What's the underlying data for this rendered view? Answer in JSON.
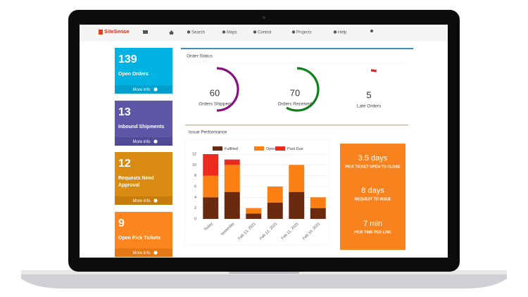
{
  "nav": {
    "brand": "SiteSense",
    "items": [
      "Search",
      "Maps",
      "Control",
      "Projects",
      "Help"
    ]
  },
  "tiles": [
    {
      "value": 139,
      "label": "Open Orders",
      "link": "More info",
      "color": "#00b3e3",
      "link_color": "#00a0cc"
    },
    {
      "value": 13,
      "label": "Inbound Shipments",
      "link": "More info",
      "color": "#5e57a8",
      "link_color": "#514a96"
    },
    {
      "value": 12,
      "label": "Requests Need Approval",
      "link": "More info",
      "color": "#da8b12",
      "link_color": "#c67c0c"
    },
    {
      "value": 9,
      "label": "Open Pick Tickets",
      "link": "More info",
      "color": "#fb8620",
      "link_color": "#e47716"
    }
  ],
  "order_status": {
    "title": "Order Status",
    "gauges": [
      {
        "value": 60,
        "label": "Orders Shipped",
        "color": "#84117f"
      },
      {
        "value": 70,
        "label": "Orders Received",
        "color": "#11801a"
      },
      {
        "value": 5,
        "label": "Late Orders",
        "color": "#e02020"
      }
    ]
  },
  "issue_performance": {
    "title": "Issue Performance"
  },
  "chart_data": {
    "type": "stacked_bar",
    "categories": [
      "Today",
      "Yesterday",
      "Feb 13, 2021",
      "Feb 12, 2021",
      "Feb 11, 2021",
      "Feb 10, 2021"
    ],
    "series": [
      {
        "name": "Fulfilled",
        "color": "#6b2a10",
        "values": [
          4,
          5,
          1,
          3,
          5,
          2
        ]
      },
      {
        "name": "Open",
        "color": "#fb7f12",
        "values": [
          4,
          5,
          1,
          3,
          5,
          2
        ]
      },
      {
        "name": "Past Due",
        "color": "#ec2a1e",
        "values": [
          4,
          1,
          0,
          0,
          0,
          0
        ]
      }
    ],
    "ylim": [
      0,
      12
    ],
    "yticks": [
      0,
      2,
      4,
      6,
      8,
      10,
      12
    ],
    "grid": true
  },
  "kpis": [
    {
      "value": "3.5 days",
      "label": "PICK TICKET OPEN TO CLOSE"
    },
    {
      "value": "8 days",
      "label": "REQUEST TO ISSUE"
    },
    {
      "value": "7 min",
      "label": "PICK TIME PER LINE"
    }
  ]
}
